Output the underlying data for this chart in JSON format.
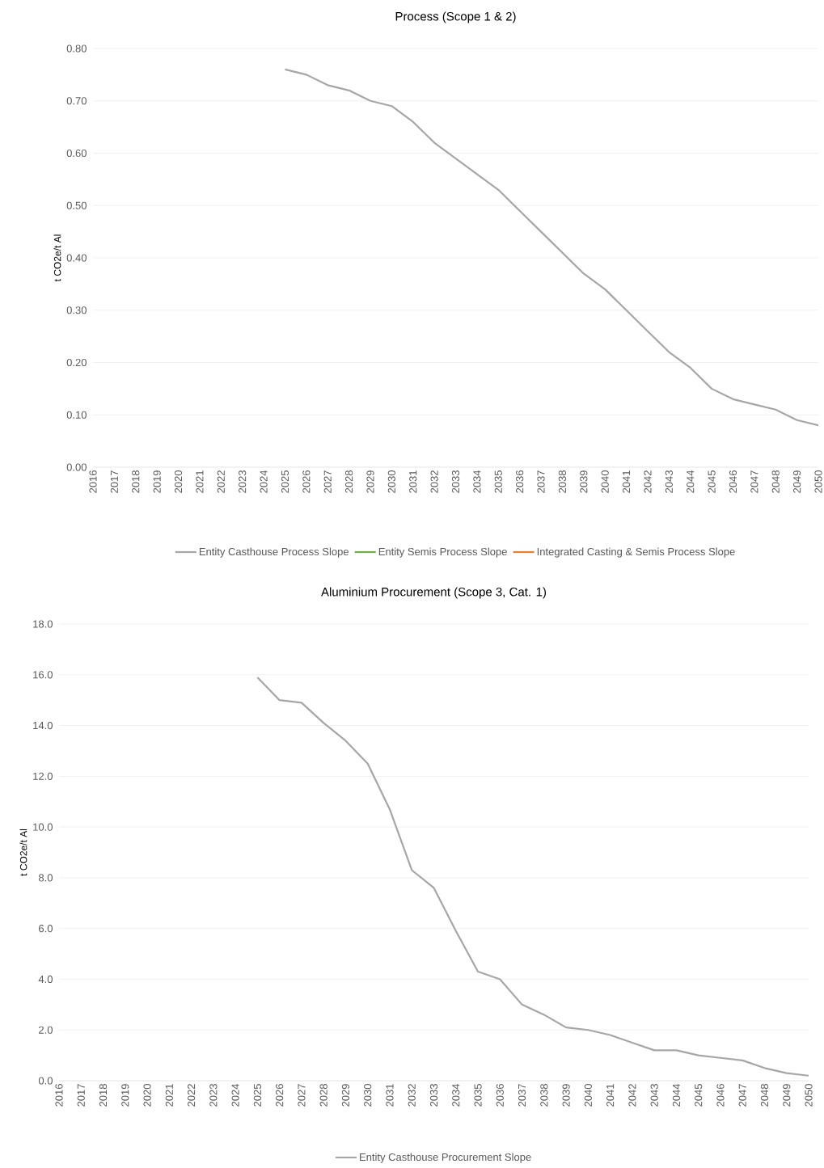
{
  "chart_data": [
    {
      "type": "line",
      "title": "Process (Scope 1 & 2)",
      "ylabel": "t CO2e/t Al",
      "categories": [
        "2016",
        "2017",
        "2018",
        "2019",
        "2020",
        "2021",
        "2022",
        "2023",
        "2024",
        "2025",
        "2026",
        "2027",
        "2028",
        "2029",
        "2030",
        "2031",
        "2032",
        "2033",
        "2034",
        "2035",
        "2036",
        "2037",
        "2038",
        "2039",
        "2040",
        "2041",
        "2042",
        "2043",
        "2044",
        "2045",
        "2046",
        "2047",
        "2048",
        "2049",
        "2050"
      ],
      "series": [
        {
          "name": "Entity Casthouse Process Slope",
          "color": "#a6a6a6",
          "values": [
            null,
            null,
            null,
            null,
            null,
            null,
            null,
            null,
            null,
            0.76,
            0.75,
            0.73,
            0.72,
            0.7,
            0.69,
            0.66,
            0.62,
            0.59,
            0.56,
            0.53,
            0.49,
            0.45,
            0.41,
            0.37,
            0.34,
            0.3,
            0.26,
            0.22,
            0.19,
            0.15,
            0.13,
            0.12,
            0.11,
            0.09,
            0.08
          ]
        },
        {
          "name": "Entity Semis Process Slope",
          "color": "#70ad47",
          "values": [
            null,
            null,
            null,
            null,
            null,
            null,
            null,
            null,
            null,
            null,
            null,
            null,
            null,
            null,
            null,
            null,
            null,
            null,
            null,
            null,
            null,
            null,
            null,
            null,
            null,
            null,
            null,
            null,
            null,
            null,
            null,
            null,
            null,
            null,
            null
          ]
        },
        {
          "name": "Integrated Casting & Semis Process Slope",
          "color": "#ed7d31",
          "values": [
            null,
            null,
            null,
            null,
            null,
            null,
            null,
            null,
            null,
            null,
            null,
            null,
            null,
            null,
            null,
            null,
            null,
            null,
            null,
            null,
            null,
            null,
            null,
            null,
            null,
            null,
            null,
            null,
            null,
            null,
            null,
            null,
            null,
            null,
            null
          ]
        }
      ],
      "ylim": [
        0,
        0.8
      ],
      "yticks": [
        {
          "value": 0,
          "label": "0.00"
        },
        {
          "value": 0.1,
          "label": "0.10"
        },
        {
          "value": 0.2,
          "label": "0.20"
        },
        {
          "value": 0.3,
          "label": "0.30"
        },
        {
          "value": 0.4,
          "label": "0.40"
        },
        {
          "value": 0.5,
          "label": "0.50"
        },
        {
          "value": 0.6,
          "label": "0.60"
        },
        {
          "value": 0.7,
          "label": "0.70"
        },
        {
          "value": 0.8,
          "label": "0.80"
        }
      ],
      "grid": "y",
      "legend": "bottom",
      "marker": "none",
      "line_style": "solid"
    },
    {
      "type": "line",
      "title": "Aluminium Procurement (Scope 3, Cat. 1)",
      "ylabel": "t CO2e/t Al",
      "categories": [
        "2016",
        "2017",
        "2018",
        "2019",
        "2020",
        "2021",
        "2022",
        "2023",
        "2024",
        "2025",
        "2026",
        "2027",
        "2028",
        "2029",
        "2030",
        "2031",
        "2032",
        "2033",
        "2034",
        "2035",
        "2036",
        "2037",
        "2038",
        "2039",
        "2040",
        "2041",
        "2042",
        "2043",
        "2044",
        "2045",
        "2046",
        "2047",
        "2048",
        "2049",
        "2050"
      ],
      "series": [
        {
          "name": "Entity Casthouse Procurement Slope",
          "color": "#a6a6a6",
          "values": [
            null,
            null,
            null,
            null,
            null,
            null,
            null,
            null,
            null,
            15.9,
            15.0,
            14.9,
            14.1,
            13.4,
            12.5,
            10.7,
            8.3,
            7.6,
            5.9,
            4.3,
            4.0,
            3.0,
            2.6,
            2.1,
            2.0,
            1.8,
            1.5,
            1.2,
            1.2,
            1.0,
            0.9,
            0.8,
            0.5,
            0.3,
            0.2
          ]
        }
      ],
      "ylim": [
        0,
        18
      ],
      "yticks": [
        {
          "value": 0,
          "label": "0.0"
        },
        {
          "value": 2,
          "label": "2.0"
        },
        {
          "value": 4,
          "label": "4.0"
        },
        {
          "value": 6,
          "label": "6.0"
        },
        {
          "value": 8,
          "label": "8.0"
        },
        {
          "value": 10,
          "label": "10.0"
        },
        {
          "value": 12,
          "label": "12.0"
        },
        {
          "value": 14,
          "label": "14.0"
        },
        {
          "value": 16,
          "label": "16.0"
        },
        {
          "value": 18,
          "label": "18.0"
        }
      ],
      "grid": "y",
      "legend": "bottom",
      "marker": "none",
      "line_style": "solid"
    }
  ]
}
